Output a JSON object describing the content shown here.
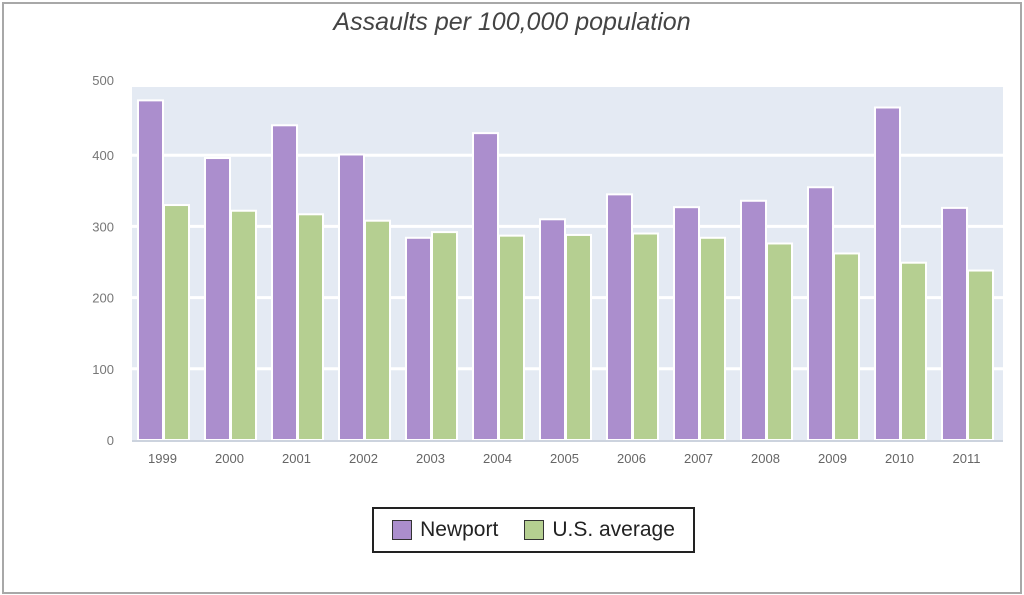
{
  "chart_data": {
    "type": "bar",
    "title": "Assaults per 100,000 population",
    "xlabel": "",
    "ylabel": "",
    "categories": [
      "1999",
      "2000",
      "2001",
      "2002",
      "2003",
      "2004",
      "2005",
      "2006",
      "2007",
      "2008",
      "2009",
      "2010",
      "2011"
    ],
    "series": [
      {
        "name": "Newport",
        "color": "#ab8ecd",
        "values": [
          477,
          396,
          442,
          401,
          284,
          431,
          310,
          345,
          327,
          336,
          355,
          467,
          326
        ]
      },
      {
        "name": "U.S. average",
        "color": "#b5cf91",
        "values": [
          330,
          322,
          317,
          308,
          292,
          287,
          288,
          290,
          284,
          276,
          262,
          249,
          238
        ]
      }
    ],
    "ylim": [
      0,
      500
    ],
    "yticks": [
      "0",
      "100",
      "200",
      "300",
      "400",
      "500"
    ],
    "grid": true,
    "legend": "bottom-center"
  }
}
